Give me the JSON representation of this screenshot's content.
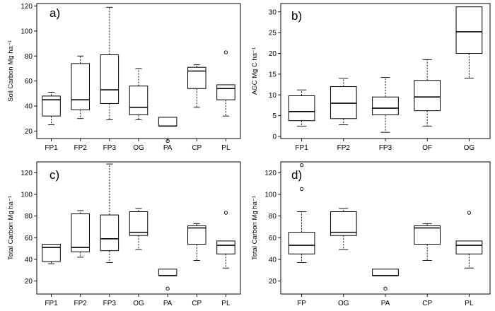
{
  "chart_data": [
    {
      "type": "box",
      "panel_label": "a)",
      "ylabel": "Soil Carbon Mg ha⁻¹",
      "ylim": [
        14,
        122
      ],
      "yticks": [
        20,
        40,
        60,
        80,
        100,
        120
      ],
      "categories": [
        "FP1",
        "FP2",
        "FP3",
        "OG",
        "PA",
        "CP",
        "PL"
      ],
      "boxes": [
        {
          "min": 25,
          "q1": 32,
          "median": 45,
          "q3": 48,
          "max": 51,
          "outliers": []
        },
        {
          "min": 30,
          "q1": 37,
          "median": 45,
          "q3": 74,
          "max": 80,
          "outliers": []
        },
        {
          "min": 29,
          "q1": 42,
          "median": 53,
          "q3": 81,
          "max": 119,
          "outliers": []
        },
        {
          "min": 29,
          "q1": 33,
          "median": 39,
          "q3": 56,
          "max": 70,
          "outliers": []
        },
        {
          "min": 24,
          "q1": 24,
          "median": 24,
          "q3": 31,
          "max": 31,
          "outliers": [
            12
          ]
        },
        {
          "min": 39,
          "q1": 54,
          "median": 68,
          "q3": 71,
          "max": 73,
          "outliers": []
        },
        {
          "min": 32,
          "q1": 45,
          "median": 54,
          "q3": 57,
          "max": 57,
          "outliers": [
            83
          ]
        }
      ]
    },
    {
      "type": "box",
      "panel_label": "b)",
      "ylabel": "AGC Mg C ha⁻¹",
      "ylim": [
        -0.5,
        32
      ],
      "yticks": [
        0,
        5,
        10,
        15,
        20,
        25,
        30
      ],
      "categories": [
        "FP1",
        "FP2",
        "FP3",
        "OF",
        "OG"
      ],
      "boxes": [
        {
          "min": 2.5,
          "q1": 3.8,
          "median": 6,
          "q3": 9.8,
          "max": 11.2,
          "outliers": []
        },
        {
          "min": 2.8,
          "q1": 4.3,
          "median": 8,
          "q3": 12,
          "max": 14,
          "outliers": []
        },
        {
          "min": 1,
          "q1": 5.2,
          "median": 6.8,
          "q3": 9.5,
          "max": 14.2,
          "outliers": []
        },
        {
          "min": 2.5,
          "q1": 6.2,
          "median": 9.5,
          "q3": 13.5,
          "max": 18.5,
          "outliers": []
        },
        {
          "min": 14,
          "q1": 20,
          "median": 25.2,
          "q3": 31.2,
          "max": 31.2,
          "outliers": []
        }
      ]
    },
    {
      "type": "box",
      "panel_label": "c)",
      "ylabel": "Total Carbon Mg ha⁻¹",
      "ylim": [
        8,
        130
      ],
      "yticks": [
        20,
        40,
        60,
        80,
        100,
        120
      ],
      "categories": [
        "FP1",
        "FP2",
        "FP3",
        "OG",
        "PA",
        "CP",
        "PL"
      ],
      "boxes": [
        {
          "min": 36,
          "q1": 38,
          "median": 51,
          "q3": 54,
          "max": 54,
          "outliers": []
        },
        {
          "min": 42,
          "q1": 47,
          "median": 51,
          "q3": 82,
          "max": 85,
          "outliers": []
        },
        {
          "min": 37,
          "q1": 48,
          "median": 59,
          "q3": 81,
          "max": 128,
          "outliers": []
        },
        {
          "min": 49,
          "q1": 62,
          "median": 65,
          "q3": 84,
          "max": 87,
          "outliers": []
        },
        {
          "min": 25,
          "q1": 25,
          "median": 25,
          "q3": 31,
          "max": 31,
          "outliers": [
            13
          ]
        },
        {
          "min": 39,
          "q1": 54,
          "median": 69,
          "q3": 71,
          "max": 73,
          "outliers": []
        },
        {
          "min": 32,
          "q1": 45,
          "median": 53,
          "q3": 57,
          "max": 57,
          "outliers": [
            83
          ]
        }
      ]
    },
    {
      "type": "box",
      "panel_label": "d)",
      "ylabel": "Total Carbon Mg ha⁻¹",
      "ylim": [
        8,
        130
      ],
      "yticks": [
        20,
        40,
        60,
        80,
        100,
        120
      ],
      "categories": [
        "FP",
        "OG",
        "PA",
        "CP",
        "PL"
      ],
      "boxes": [
        {
          "min": 37,
          "q1": 45,
          "median": 53,
          "q3": 65,
          "max": 84,
          "outliers": [
            105,
            127
          ]
        },
        {
          "min": 49,
          "q1": 62,
          "median": 65,
          "q3": 84,
          "max": 87,
          "outliers": []
        },
        {
          "min": 25,
          "q1": 25,
          "median": 25,
          "q3": 31,
          "max": 31,
          "outliers": [
            13
          ]
        },
        {
          "min": 39,
          "q1": 54,
          "median": 69,
          "q3": 71,
          "max": 73,
          "outliers": []
        },
        {
          "min": 32,
          "q1": 45,
          "median": 53,
          "q3": 57,
          "max": 57,
          "outliers": [
            83
          ]
        }
      ]
    }
  ]
}
